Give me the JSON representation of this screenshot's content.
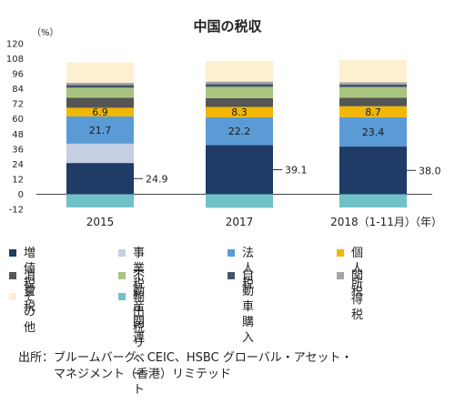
{
  "chart_data": {
    "type": "bar",
    "title": "中国の税収",
    "unit_label": "（%）",
    "x_axis_label": "（年）",
    "categories": [
      "2015",
      "2017",
      "2018（1-11月）"
    ],
    "ylim": [
      -12,
      120
    ],
    "yticks": [
      -12,
      0,
      12,
      24,
      36,
      48,
      60,
      72,
      84,
      96,
      108,
      120
    ],
    "stacked": true,
    "series": [
      {
        "name": "増値税",
        "color": "#1f3b66",
        "values": [
          24.9,
          39.1,
          38.0
        ],
        "labels": [
          "24.9",
          "39.1",
          "38.0"
        ]
      },
      {
        "name": "事業税",
        "color": "#c4cfe3",
        "values": [
          15.4,
          0,
          0
        ],
        "labels": [
          "",
          "",
          ""
        ]
      },
      {
        "name": "法人税",
        "color": "#5b9bd5",
        "values": [
          21.7,
          22.2,
          23.4
        ],
        "labels": [
          "21.7",
          "22.2",
          "23.4"
        ]
      },
      {
        "name": "個人所得税",
        "color": "#f2b705",
        "values": [
          6.9,
          8.3,
          8.7
        ],
        "labels": [
          "6.9",
          "8.3",
          "8.7"
        ]
      },
      {
        "name": "消費税",
        "color": "#555555",
        "values": [
          8.0,
          7.0,
          6.8
        ],
        "labels": [
          "",
          "",
          ""
        ]
      },
      {
        "name": "不動産関連",
        "color": "#a9c47f",
        "values": [
          8.0,
          9.0,
          8.5
        ],
        "labels": [
          "",
          "",
          ""
        ]
      },
      {
        "name": "自動車購入",
        "color": "#44546a",
        "values": [
          2.2,
          2.2,
          2.1
        ],
        "labels": [
          "",
          "",
          ""
        ]
      },
      {
        "name": "関税",
        "color": "#a5a5a5",
        "values": [
          1.8,
          2.0,
          1.8
        ],
        "labels": [
          "",
          "",
          ""
        ]
      },
      {
        "name": "その他",
        "color": "#fdf0d0",
        "values": [
          16.2,
          16.5,
          17.6
        ],
        "labels": [
          "",
          "",
          ""
        ]
      },
      {
        "name": "輸出税\nリベート",
        "color": "#70c1c8",
        "values": [
          -10.5,
          -10.8,
          -10.6
        ],
        "labels": [
          "",
          "",
          ""
        ]
      }
    ],
    "grid": false,
    "legend_position": "bottom"
  },
  "source_text": "出所：ブルームバーグ、CEIC、HSBC グローバル・アセット・\n　　　マネジメント（香港）リミテッド"
}
